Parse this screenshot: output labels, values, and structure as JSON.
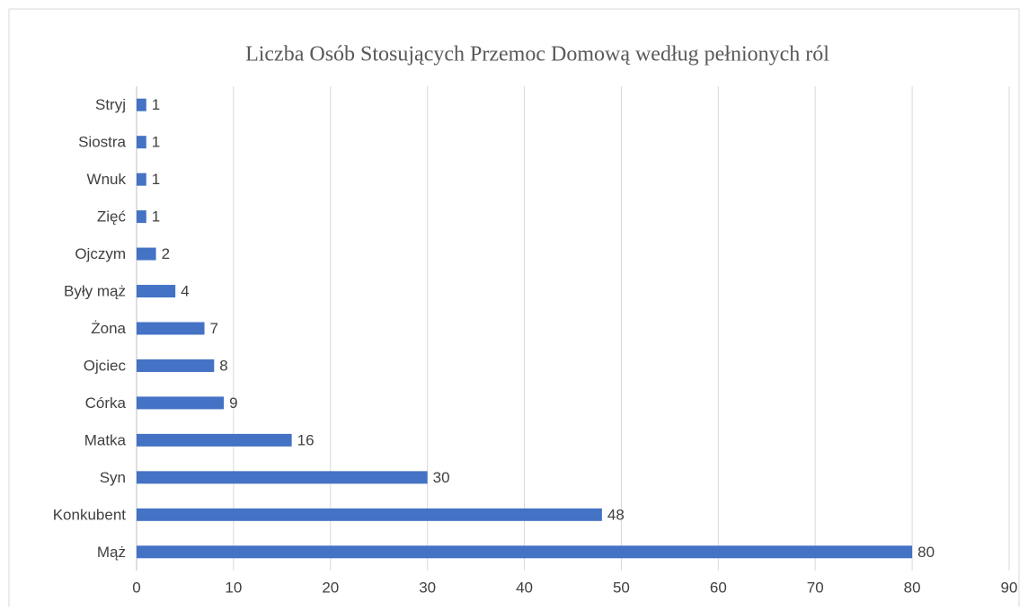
{
  "chart_data": {
    "type": "bar",
    "orientation": "horizontal",
    "title": "Liczba Osób Stosujących Przemoc Domową według pełnionych ról",
    "categories": [
      "Mąż",
      "Konkubent",
      "Syn",
      "Matka",
      "Córka",
      "Ojciec",
      "Żona",
      "Były mąż",
      "Ojczym",
      "Zięć",
      "Wnuk",
      "Siostra",
      "Stryj"
    ],
    "values": [
      80,
      48,
      30,
      16,
      9,
      8,
      7,
      4,
      2,
      1,
      1,
      1,
      1
    ],
    "color": "#4472c4",
    "xlim": [
      0,
      90
    ],
    "xticks": [
      0,
      10,
      20,
      30,
      40,
      50,
      60,
      70,
      80,
      90
    ],
    "grid": true
  }
}
